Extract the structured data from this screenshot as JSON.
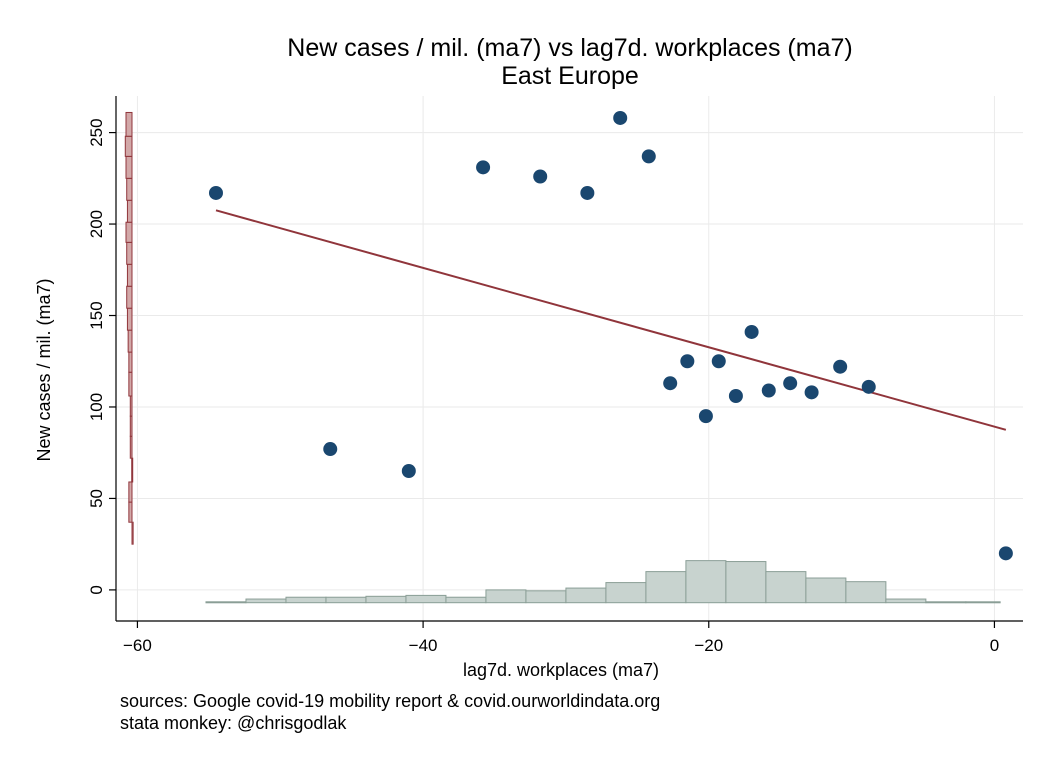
{
  "chart_data": {
    "type": "scatter",
    "title": "New cases / mil. (ma7) vs lag7d. workplaces (ma7)",
    "subtitle": "East Europe",
    "xlabel": "lag7d. workplaces (ma7)",
    "ylabel": "New cases / mil. (ma7)",
    "xlim": [
      -61.5,
      2
    ],
    "ylim": [
      -17,
      270
    ],
    "xticks": [
      -60,
      -40,
      -20,
      0
    ],
    "yticks": [
      0,
      50,
      100,
      150,
      200,
      250
    ],
    "grid": true,
    "points": [
      {
        "x": -54.5,
        "y": 217
      },
      {
        "x": -46.5,
        "y": 77
      },
      {
        "x": -41.0,
        "y": 65
      },
      {
        "x": -35.8,
        "y": 231
      },
      {
        "x": -31.8,
        "y": 226
      },
      {
        "x": -28.5,
        "y": 217
      },
      {
        "x": -26.2,
        "y": 258
      },
      {
        "x": -24.2,
        "y": 237
      },
      {
        "x": -22.7,
        "y": 113
      },
      {
        "x": -21.5,
        "y": 125
      },
      {
        "x": -20.2,
        "y": 95
      },
      {
        "x": -19.3,
        "y": 125
      },
      {
        "x": -18.1,
        "y": 106
      },
      {
        "x": -17.0,
        "y": 141
      },
      {
        "x": -15.8,
        "y": 109
      },
      {
        "x": -14.3,
        "y": 113
      },
      {
        "x": -12.8,
        "y": 108
      },
      {
        "x": -10.8,
        "y": 122
      },
      {
        "x": -8.8,
        "y": 111
      },
      {
        "x": 0.8,
        "y": 20
      }
    ],
    "fit_line": {
      "x": [
        -54.5,
        0.8
      ],
      "y": [
        207.5,
        87.5
      ]
    },
    "x_histogram": {
      "bin_edges": [
        -55.2,
        -52.4,
        -49.6,
        -46.8,
        -44.0,
        -41.2,
        -38.4,
        -35.6,
        -32.8,
        -30.0,
        -27.2,
        -24.4,
        -21.6,
        -18.8,
        -16.0,
        -13.2,
        -10.4,
        -7.6,
        -4.8,
        -2.0,
        0.4
      ],
      "heights": [
        -6.5,
        -5,
        -4,
        -4,
        -3.5,
        -3,
        -4,
        0,
        -0.5,
        1,
        4,
        10,
        16,
        15.5,
        10,
        6.5,
        4.5,
        -5,
        -6.5,
        -6.5
      ]
    },
    "y_histogram": {
      "bin_edges": [
        25,
        37,
        48,
        59,
        72,
        84,
        95,
        106,
        119,
        130,
        142,
        154,
        166,
        178,
        190,
        201,
        213,
        225,
        237,
        248,
        261
      ],
      "widths": [
        -60.3,
        -60.6,
        -60.6,
        -60.4,
        -60.5,
        -60.5,
        -60.5,
        -60.6,
        -60.6,
        -60.65,
        -60.7,
        -60.75,
        -60.7,
        -60.75,
        -60.8,
        -60.7,
        -60.75,
        -60.8,
        -60.85,
        -60.8
      ]
    },
    "colors": {
      "points": "#1a476f",
      "fit": "#90353b",
      "xhist": "#c8d3cf",
      "xhist_edge": "#8a9e96",
      "yhist": "#d2a8a8",
      "yhist_edge": "#90353b",
      "grid": "#eaeaea"
    },
    "notes": [
      "sources: Google covid-19 mobility report & covid.ourworldindata.org",
      "stata monkey: @chrisgodlak"
    ]
  }
}
